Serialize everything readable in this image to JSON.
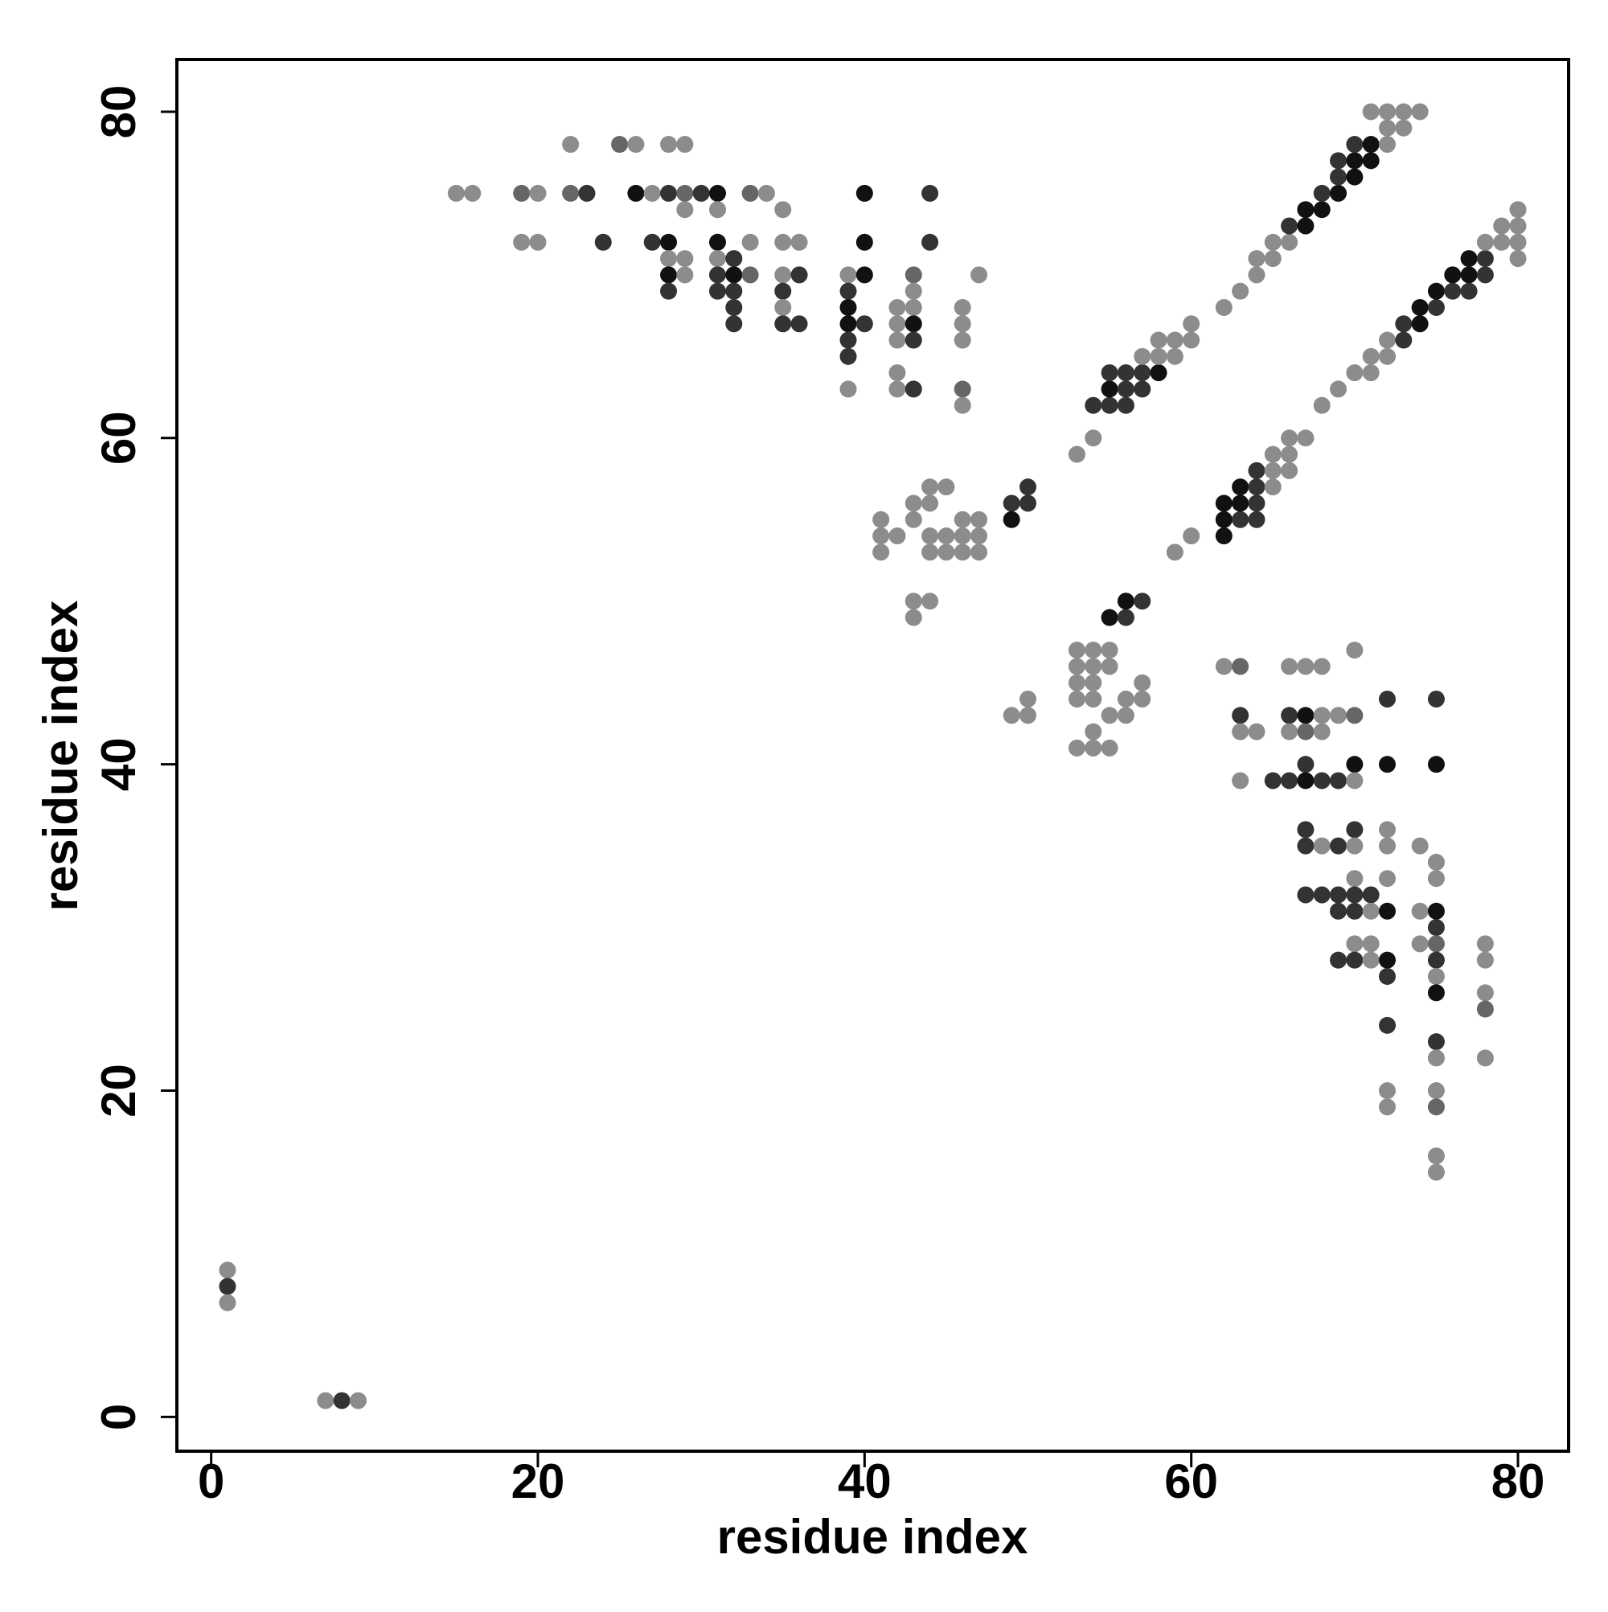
{
  "chart_data": {
    "type": "scatter",
    "xlabel": "residue index",
    "ylabel": "residue index",
    "xlim": [
      -2.1,
      83.1
    ],
    "ylim": [
      -2.1,
      83.2
    ],
    "xticks": [
      0,
      20,
      40,
      60,
      80
    ],
    "yticks": [
      0,
      20,
      40,
      60,
      80
    ],
    "grid": false,
    "x": [
      1,
      1,
      1,
      7,
      8,
      9,
      22,
      25,
      26,
      28,
      29,
      15,
      16,
      19,
      20,
      22,
      23,
      26,
      27,
      28,
      29,
      30,
      31,
      33,
      34,
      40,
      44,
      29,
      31,
      35,
      19,
      20,
      24,
      27,
      28,
      31,
      33,
      35,
      36,
      40,
      44,
      28,
      29,
      31,
      32,
      28,
      29,
      31,
      32,
      33,
      35,
      36,
      39,
      40,
      43,
      47,
      28,
      31,
      32,
      35,
      39,
      43,
      32,
      35,
      39,
      42,
      43,
      46,
      32,
      35,
      36,
      39,
      40,
      42,
      43,
      46,
      39,
      42,
      43,
      46,
      39,
      42,
      39,
      42,
      43,
      46,
      46,
      44,
      45,
      50,
      43,
      44,
      49,
      50,
      41,
      43,
      46,
      47,
      49,
      41,
      42,
      44,
      45,
      46,
      47,
      41,
      44,
      45,
      46,
      47,
      43,
      44,
      43,
      53,
      54,
      54,
      55,
      56,
      55,
      56,
      57,
      55,
      56,
      57,
      58,
      57,
      58,
      59,
      58,
      59,
      60,
      60,
      62,
      63,
      64,
      64,
      65,
      65,
      66,
      66,
      67,
      67,
      68,
      68,
      69,
      69,
      70,
      69,
      70,
      71,
      70,
      71,
      72,
      72,
      73,
      71,
      72,
      73,
      74,
      59,
      60,
      62,
      62,
      63,
      64,
      62,
      63,
      64,
      63,
      64,
      65,
      64,
      65,
      66,
      65,
      66,
      66,
      67,
      68,
      69,
      70,
      71,
      71,
      72,
      72,
      73,
      73,
      74,
      74,
      75,
      75,
      76,
      77,
      76,
      77,
      78,
      77,
      78,
      80,
      78,
      79,
      80,
      79,
      80,
      80,
      49,
      50,
      55,
      56,
      50,
      53,
      54,
      56,
      57,
      53,
      54,
      55,
      54,
      53,
      54,
      57,
      53,
      54,
      55,
      53,
      54,
      55,
      55,
      56,
      56,
      57,
      62,
      63,
      66,
      67,
      68,
      70,
      63,
      66,
      67,
      68,
      69,
      70,
      72,
      75,
      63,
      64,
      66,
      67,
      68,
      67,
      70,
      72,
      75,
      63,
      65,
      66,
      67,
      68,
      69,
      70,
      67,
      70,
      72,
      67,
      68,
      69,
      70,
      72,
      74,
      75,
      70,
      72,
      75,
      67,
      68,
      69,
      70,
      71,
      69,
      70,
      71,
      72,
      74,
      75,
      75,
      70,
      71,
      74,
      75,
      78,
      69,
      70,
      71,
      72,
      75,
      78,
      72,
      75,
      75,
      78,
      78,
      72,
      75,
      75,
      78,
      72,
      75,
      72,
      75,
      75,
      75
    ],
    "y": [
      9,
      8,
      7,
      1,
      1,
      1,
      78,
      78,
      78,
      78,
      78,
      75,
      75,
      75,
      75,
      75,
      75,
      75,
      75,
      75,
      75,
      75,
      75,
      75,
      75,
      75,
      75,
      74,
      74,
      74,
      72,
      72,
      72,
      72,
      72,
      72,
      72,
      72,
      72,
      72,
      72,
      71,
      71,
      71,
      71,
      70,
      70,
      70,
      70,
      70,
      70,
      70,
      70,
      70,
      70,
      70,
      69,
      69,
      69,
      69,
      69,
      69,
      68,
      68,
      68,
      68,
      68,
      68,
      67,
      67,
      67,
      67,
      67,
      67,
      67,
      67,
      66,
      66,
      66,
      66,
      65,
      64,
      63,
      63,
      63,
      63,
      62,
      57,
      57,
      57,
      56,
      56,
      56,
      56,
      55,
      55,
      55,
      55,
      55,
      54,
      54,
      54,
      54,
      54,
      54,
      53,
      53,
      53,
      53,
      53,
      50,
      50,
      49,
      59,
      60,
      62,
      62,
      62,
      63,
      63,
      63,
      64,
      64,
      64,
      64,
      65,
      65,
      65,
      66,
      66,
      66,
      67,
      68,
      69,
      70,
      71,
      71,
      72,
      72,
      73,
      73,
      74,
      74,
      75,
      75,
      76,
      76,
      77,
      77,
      77,
      78,
      78,
      78,
      79,
      79,
      80,
      80,
      80,
      80,
      53,
      54,
      54,
      55,
      55,
      55,
      56,
      56,
      56,
      57,
      57,
      57,
      58,
      58,
      58,
      59,
      59,
      60,
      60,
      62,
      63,
      64,
      64,
      65,
      65,
      66,
      66,
      67,
      67,
      68,
      68,
      69,
      69,
      69,
      70,
      70,
      70,
      71,
      71,
      71,
      72,
      72,
      72,
      73,
      73,
      74,
      43,
      43,
      43,
      43,
      44,
      44,
      44,
      44,
      44,
      41,
      41,
      41,
      42,
      45,
      45,
      45,
      46,
      46,
      46,
      47,
      47,
      47,
      49,
      49,
      50,
      50,
      46,
      46,
      46,
      46,
      46,
      47,
      43,
      43,
      43,
      43,
      43,
      43,
      44,
      44,
      42,
      42,
      42,
      42,
      42,
      40,
      40,
      40,
      40,
      39,
      39,
      39,
      39,
      39,
      39,
      39,
      36,
      36,
      36,
      35,
      35,
      35,
      35,
      35,
      35,
      34,
      33,
      33,
      33,
      32,
      32,
      32,
      32,
      32,
      31,
      31,
      31,
      31,
      31,
      31,
      30,
      29,
      29,
      29,
      29,
      29,
      28,
      28,
      28,
      28,
      28,
      28,
      27,
      27,
      26,
      26,
      25,
      24,
      23,
      22,
      22,
      20,
      20,
      19,
      19,
      16,
      15
    ],
    "colors": [
      "#8c8c8c",
      "#333333",
      "#8c8c8c",
      "#8c8c8c",
      "#333333",
      "#8c8c8c",
      "#8c8c8c",
      "#666666",
      "#8c8c8c",
      "#8c8c8c",
      "#8c8c8c",
      "#8c8c8c",
      "#8c8c8c",
      "#666666",
      "#8c8c8c",
      "#666666",
      "#333333",
      "#111111",
      "#8c8c8c",
      "#333333",
      "#666666",
      "#333333",
      "#111111",
      "#666666",
      "#8c8c8c",
      "#111111",
      "#333333",
      "#8c8c8c",
      "#8c8c8c",
      "#8c8c8c",
      "#8c8c8c",
      "#8c8c8c",
      "#333333",
      "#333333",
      "#111111",
      "#111111",
      "#8c8c8c",
      "#8c8c8c",
      "#8c8c8c",
      "#111111",
      "#333333",
      "#8c8c8c",
      "#8c8c8c",
      "#8c8c8c",
      "#333333",
      "#111111",
      "#8c8c8c",
      "#333333",
      "#111111",
      "#666666",
      "#8c8c8c",
      "#333333",
      "#8c8c8c",
      "#111111",
      "#666666",
      "#8c8c8c",
      "#333333",
      "#333333",
      "#333333",
      "#333333",
      "#333333",
      "#8c8c8c",
      "#333333",
      "#8c8c8c",
      "#111111",
      "#8c8c8c",
      "#8c8c8c",
      "#8c8c8c",
      "#333333",
      "#333333",
      "#333333",
      "#111111",
      "#333333",
      "#8c8c8c",
      "#111111",
      "#8c8c8c",
      "#333333",
      "#8c8c8c",
      "#333333",
      "#8c8c8c",
      "#333333",
      "#8c8c8c",
      "#8c8c8c",
      "#8c8c8c",
      "#333333",
      "#666666",
      "#8c8c8c",
      "#8c8c8c",
      "#8c8c8c",
      "#333333",
      "#8c8c8c",
      "#8c8c8c",
      "#333333",
      "#333333",
      "#8c8c8c",
      "#8c8c8c",
      "#8c8c8c",
      "#8c8c8c",
      "#111111",
      "#8c8c8c",
      "#8c8c8c",
      "#8c8c8c",
      "#8c8c8c",
      "#8c8c8c",
      "#8c8c8c",
      "#8c8c8c",
      "#8c8c8c",
      "#8c8c8c",
      "#8c8c8c",
      "#8c8c8c",
      "#8c8c8c",
      "#8c8c8c",
      "#8c8c8c",
      "#8c8c8c",
      "#8c8c8c",
      "#333333",
      "#333333",
      "#333333",
      "#111111",
      "#333333",
      "#333333",
      "#333333",
      "#333333",
      "#333333",
      "#111111",
      "#8c8c8c",
      "#8c8c8c",
      "#8c8c8c",
      "#8c8c8c",
      "#8c8c8c",
      "#8c8c8c",
      "#8c8c8c",
      "#8c8c8c",
      "#8c8c8c",
      "#8c8c8c",
      "#8c8c8c",
      "#8c8c8c",
      "#8c8c8c",
      "#8c8c8c",
      "#333333",
      "#111111",
      "#111111",
      "#111111",
      "#333333",
      "#111111",
      "#333333",
      "#111111",
      "#333333",
      "#111111",
      "#111111",
      "#333333",
      "#111111",
      "#8c8c8c",
      "#8c8c8c",
      "#8c8c8c",
      "#8c8c8c",
      "#8c8c8c",
      "#8c8c8c",
      "#8c8c8c",
      "#8c8c8c",
      "#8c8c8c",
      "#111111",
      "#111111",
      "#333333",
      "#333333",
      "#111111",
      "#111111",
      "#333333",
      "#111111",
      "#333333",
      "#8c8c8c",
      "#333333",
      "#8c8c8c",
      "#8c8c8c",
      "#8c8c8c",
      "#8c8c8c",
      "#8c8c8c",
      "#8c8c8c",
      "#8c8c8c",
      "#8c8c8c",
      "#8c8c8c",
      "#8c8c8c",
      "#8c8c8c",
      "#8c8c8c",
      "#8c8c8c",
      "#333333",
      "#333333",
      "#111111",
      "#111111",
      "#333333",
      "#111111",
      "#333333",
      "#333333",
      "#111111",
      "#111111",
      "#333333",
      "#111111",
      "#333333",
      "#8c8c8c",
      "#8c8c8c",
      "#8c8c8c",
      "#8c8c8c",
      "#8c8c8c",
      "#8c8c8c",
      "#8c8c8c",
      "#8c8c8c",
      "#8c8c8c",
      "#8c8c8c",
      "#8c8c8c",
      "#8c8c8c",
      "#8c8c8c",
      "#8c8c8c",
      "#8c8c8c",
      "#8c8c8c",
      "#8c8c8c",
      "#8c8c8c",
      "#8c8c8c",
      "#8c8c8c",
      "#8c8c8c",
      "#8c8c8c",
      "#8c8c8c",
      "#8c8c8c",
      "#8c8c8c",
      "#8c8c8c",
      "#8c8c8c",
      "#8c8c8c",
      "#8c8c8c",
      "#111111",
      "#333333",
      "#111111",
      "#333333",
      "#8c8c8c",
      "#666666",
      "#8c8c8c",
      "#8c8c8c",
      "#8c8c8c",
      "#8c8c8c",
      "#333333",
      "#333333",
      "#111111",
      "#8c8c8c",
      "#8c8c8c",
      "#666666",
      "#333333",
      "#333333",
      "#8c8c8c",
      "#8c8c8c",
      "#8c8c8c",
      "#666666",
      "#8c8c8c",
      "#333333",
      "#111111",
      "#111111",
      "#111111",
      "#8c8c8c",
      "#333333",
      "#333333",
      "#111111",
      "#333333",
      "#333333",
      "#8c8c8c",
      "#333333",
      "#333333",
      "#8c8c8c",
      "#333333",
      "#8c8c8c",
      "#333333",
      "#8c8c8c",
      "#8c8c8c",
      "#8c8c8c",
      "#8c8c8c",
      "#8c8c8c",
      "#8c8c8c",
      "#8c8c8c",
      "#333333",
      "#333333",
      "#333333",
      "#333333",
      "#333333",
      "#333333",
      "#333333",
      "#8c8c8c",
      "#111111",
      "#8c8c8c",
      "#111111",
      "#333333",
      "#8c8c8c",
      "#8c8c8c",
      "#8c8c8c",
      "#666666",
      "#8c8c8c",
      "#333333",
      "#333333",
      "#8c8c8c",
      "#111111",
      "#333333",
      "#8c8c8c",
      "#333333",
      "#8c8c8c",
      "#111111",
      "#8c8c8c",
      "#666666",
      "#333333",
      "#333333",
      "#8c8c8c",
      "#8c8c8c",
      "#8c8c8c",
      "#8c8c8c",
      "#8c8c8c",
      "#666666",
      "#8c8c8c",
      "#8c8c8c"
    ]
  }
}
